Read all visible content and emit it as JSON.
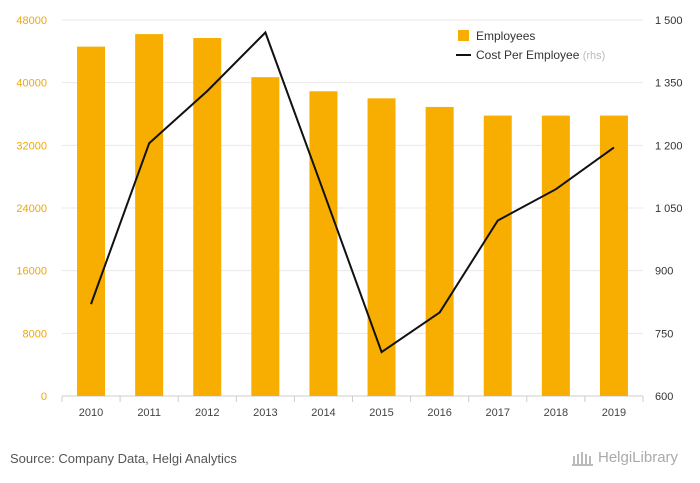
{
  "chart_data": {
    "type": "bar",
    "categories": [
      "2010",
      "2011",
      "2012",
      "2013",
      "2014",
      "2015",
      "2016",
      "2017",
      "2018",
      "2019"
    ],
    "series": [
      {
        "name": "Employees",
        "type": "bar",
        "axis": "left",
        "color": "#f7ae00",
        "values": [
          44600,
          46200,
          45700,
          40700,
          38900,
          38000,
          36900,
          35800,
          35800,
          35800
        ]
      },
      {
        "name": "Cost Per Employee",
        "name_suffix": "(rhs)",
        "type": "line",
        "axis": "right",
        "color": "#111111",
        "values": [
          820,
          1205,
          1330,
          1470,
          1090,
          705,
          800,
          1020,
          1095,
          1195
        ]
      }
    ],
    "y_left": {
      "min": 0,
      "max": 48000,
      "ticks": [
        0,
        8000,
        16000,
        24000,
        32000,
        40000,
        48000
      ],
      "tick_labels": [
        "0",
        "8000",
        "16000",
        "24000",
        "32000",
        "40000",
        "48000"
      ]
    },
    "y_right": {
      "min": 600,
      "max": 1500,
      "ticks": [
        600,
        750,
        900,
        1050,
        1200,
        1350,
        1500
      ],
      "tick_labels": [
        "600",
        "750",
        "900",
        "1 050",
        "1 200",
        "1 350",
        "1 500"
      ]
    },
    "grid": true,
    "legend_position": "top-right"
  },
  "footer": {
    "source": "Source: Company Data, Helgi Analytics",
    "brand": "HelgiLibrary"
  },
  "colors": {
    "bar": "#f7ae00",
    "line": "#111111",
    "grid": "#e8e8e8"
  }
}
